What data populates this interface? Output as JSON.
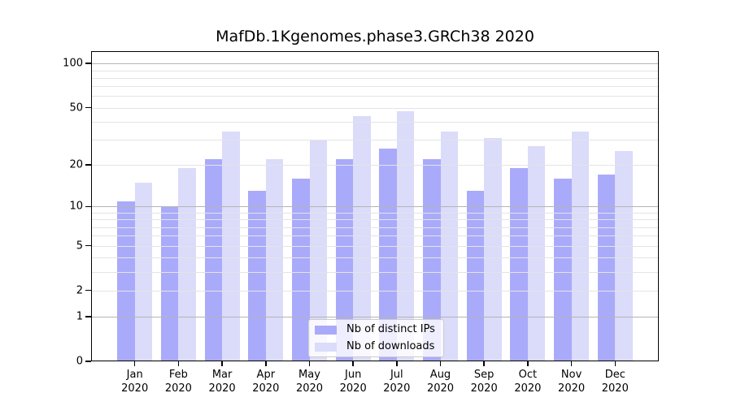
{
  "chart_data": {
    "type": "bar",
    "title": "MafDb.1Kgenomes.phase3.GRCh38 2020",
    "categories": [
      "Jan",
      "Feb",
      "Mar",
      "Apr",
      "May",
      "Jun",
      "Jul",
      "Aug",
      "Sep",
      "Oct",
      "Nov",
      "Dec"
    ],
    "category_year": "2020",
    "series": [
      {
        "name": "Nb of distinct IPs",
        "color": "#aaaafa",
        "values": [
          11,
          10,
          22,
          13,
          16,
          22,
          26,
          22,
          13,
          19,
          16,
          17
        ]
      },
      {
        "name": "Nb of downloads",
        "color": "#dbdbfa",
        "values": [
          15,
          19,
          34,
          22,
          30,
          44,
          47,
          34,
          31,
          27,
          34,
          25
        ]
      }
    ],
    "xlabel": "",
    "ylabel": "",
    "y_scale": "log1p",
    "y_ticks": [
      0,
      1,
      2,
      5,
      10,
      20,
      50,
      100
    ],
    "ylim": [
      0,
      122
    ],
    "grid": true,
    "legend_position": "lower center"
  },
  "colors": {
    "major_grid": "#b4b4b6",
    "minor_grid": "#e4e4e6",
    "spine": "#000000",
    "background": "#ffffff"
  }
}
